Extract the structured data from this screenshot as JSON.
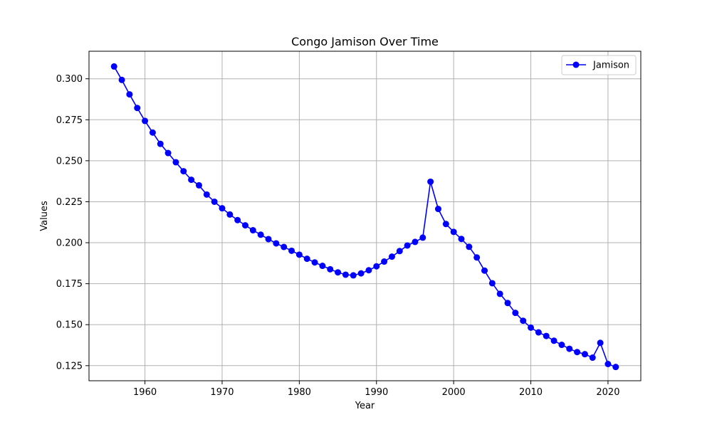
{
  "chart_data": {
    "type": "line",
    "title": "Congo Jamison Over Time",
    "xlabel": "Year",
    "ylabel": "Values",
    "xlim": [
      1952.75,
      2024.25
    ],
    "ylim": [
      0.1158,
      0.3168
    ],
    "xticks": [
      1960,
      1970,
      1980,
      1990,
      2000,
      2010,
      2020
    ],
    "yticks": [
      0.125,
      0.15,
      0.175,
      0.2,
      0.225,
      0.25,
      0.275,
      0.3
    ],
    "ytick_labels": [
      "0.125",
      "0.150",
      "0.175",
      "0.200",
      "0.225",
      "0.250",
      "0.275",
      "0.300"
    ],
    "grid": true,
    "legend_position": "top-right",
    "series": [
      {
        "name": "Jamison",
        "color": "#0000ff",
        "marker": "circle",
        "x": [
          1956,
          1957,
          1958,
          1959,
          1960,
          1961,
          1962,
          1963,
          1964,
          1965,
          1966,
          1967,
          1968,
          1969,
          1970,
          1971,
          1972,
          1973,
          1974,
          1975,
          1976,
          1977,
          1978,
          1979,
          1980,
          1981,
          1982,
          1983,
          1984,
          1985,
          1986,
          1987,
          1988,
          1989,
          1990,
          1991,
          1992,
          1993,
          1994,
          1995,
          1996,
          1997,
          1998,
          1999,
          2000,
          2001,
          2002,
          2003,
          2004,
          2005,
          2006,
          2007,
          2008,
          2009,
          2010,
          2011,
          2012,
          2013,
          2014,
          2015,
          2016,
          2017,
          2018,
          2019,
          2020,
          2021
        ],
        "values": [
          0.3075,
          0.2993,
          0.2905,
          0.2822,
          0.2743,
          0.2672,
          0.2603,
          0.2547,
          0.2491,
          0.2436,
          0.2384,
          0.235,
          0.2294,
          0.225,
          0.221,
          0.2172,
          0.2138,
          0.2106,
          0.2076,
          0.2049,
          0.2022,
          0.1996,
          0.1974,
          0.1951,
          0.1927,
          0.1902,
          0.188,
          0.1859,
          0.1838,
          0.1819,
          0.1805,
          0.1801,
          0.1813,
          0.1832,
          0.1856,
          0.1885,
          0.1915,
          0.1949,
          0.1983,
          0.2005,
          0.2031,
          0.2372,
          0.2206,
          0.2114,
          0.2066,
          0.2023,
          0.1975,
          0.191,
          0.183,
          0.1753,
          0.1688,
          0.1632,
          0.1572,
          0.1524,
          0.1482,
          0.1453,
          0.1431,
          0.1402,
          0.1377,
          0.1353,
          0.1333,
          0.132,
          0.1299,
          0.1389,
          0.126,
          0.1242
        ]
      }
    ]
  }
}
